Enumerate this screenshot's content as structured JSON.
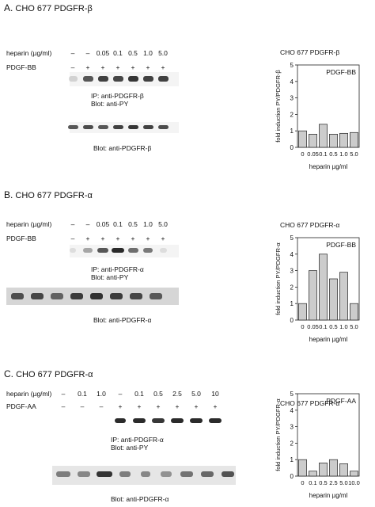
{
  "panels": [
    {
      "letter": "A.",
      "cells": "CHO  677",
      "receptor": "PDGFR-β",
      "row1_label": "heparin (µg/ml)",
      "row1": [
        "–",
        "–",
        "0.05",
        "0.1",
        "0.5",
        "1.0",
        "5.0"
      ],
      "row2_label": "PDGF-BB",
      "row2": [
        "–",
        "+",
        "+",
        "+",
        "+",
        "+",
        "+"
      ],
      "ip_line1": "IP: anti-PDGFR-β",
      "ip_line2": "Blot: anti-PY",
      "blot2": "Blot: anti-PDGFR-β"
    },
    {
      "letter": "B.",
      "cells": "CHO  677",
      "receptor": "PDGFR-α",
      "row1_label": "heparin (µg/ml)",
      "row1": [
        "–",
        "–",
        "0.05",
        "0.1",
        "0.5",
        "1.0",
        "5.0"
      ],
      "row2_label": "PDGF-BB",
      "row2": [
        "–",
        "+",
        "+",
        "+",
        "+",
        "+",
        "+"
      ],
      "ip_line1": "IP: anti-PDGFR-α",
      "ip_line2": "Blot: anti-PY",
      "blot2": "Blot: anti-PDGFR-α"
    },
    {
      "letter": "C.",
      "cells": "CHO  677",
      "receptor": "PDGFR-α",
      "row1_label": "heparin (µg/ml)",
      "row1": [
        "–",
        "0.1",
        "1.0",
        "–",
        "0.1",
        "0.5",
        "2.5",
        "5.0",
        "10"
      ],
      "row2_label": "PDGF-AA",
      "row2": [
        "–",
        "–",
        "–",
        "+",
        "+",
        "+",
        "+",
        "+",
        "+"
      ],
      "ip_line1": "IP: anti-PDGFR-α",
      "ip_line2": "Blot: anti-PY",
      "blot2": "Blot: anti-PDGFR-α"
    }
  ],
  "chart_data": [
    {
      "type": "bar",
      "title": "CHO 677  PDGFR-β",
      "inset_label": "PDGF-BB",
      "xlabel": "heparin µg/ml",
      "ylabel": "fold induction PY/PDGFR-β",
      "categories": [
        "0",
        "0.05",
        "0.1",
        "0.5",
        "1.0",
        "5.0"
      ],
      "values": [
        1.0,
        0.8,
        1.4,
        0.8,
        0.85,
        0.9
      ],
      "ylim": [
        0,
        5
      ],
      "yticks": [
        "0",
        "1",
        "2",
        "3",
        "4",
        "5"
      ],
      "grid": false,
      "bar_color": "#cccccc"
    },
    {
      "type": "bar",
      "title": "CHO 677  PDGFR-α",
      "inset_label": "PDGF-BB",
      "xlabel": "heparin µg/ml",
      "ylabel": "fold induction PY/PDGFR-α",
      "categories": [
        "0",
        "0.05",
        "0.1",
        "0.5",
        "1.0",
        "5.0"
      ],
      "values": [
        1.0,
        3.0,
        4.0,
        2.5,
        2.9,
        1.0
      ],
      "ylim": [
        0,
        5
      ],
      "yticks": [
        "0",
        "1",
        "2",
        "3",
        "4",
        "5"
      ],
      "grid": false,
      "bar_color": "#cccccc"
    },
    {
      "type": "bar",
      "title": "CHO 677  PDGFR-α",
      "inset_label": "PDGF-AA",
      "xlabel": "heparin µg/ml",
      "ylabel": "fold induction PY/PDGFR-α",
      "categories": [
        "0",
        "0.1",
        "0.5",
        "2.5",
        "5.0",
        "10.0"
      ],
      "values": [
        1.0,
        0.3,
        0.8,
        1.0,
        0.75,
        0.3
      ],
      "ylim": [
        0,
        5
      ],
      "yticks": [
        "0",
        "1",
        "2",
        "3",
        "4",
        "5"
      ],
      "grid": false,
      "bar_color": "#cccccc"
    }
  ]
}
